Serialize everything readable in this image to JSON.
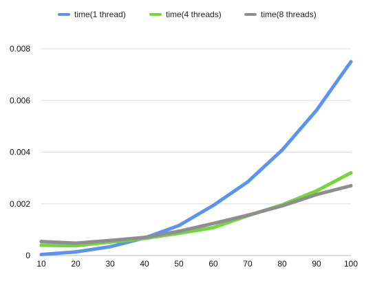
{
  "chart_data": {
    "type": "line",
    "title": "",
    "xlabel": "",
    "ylabel": "",
    "x": [
      10,
      20,
      30,
      40,
      50,
      60,
      70,
      80,
      90,
      100
    ],
    "ylim": [
      0,
      0.008
    ],
    "yticks": [
      0,
      0.002,
      0.004,
      0.006,
      0.008
    ],
    "ytick_labels": [
      "0",
      "0.002",
      "0.004",
      "0.006",
      "0.008"
    ],
    "xtick_labels": [
      "10",
      "20",
      "30",
      "40",
      "50",
      "60",
      "70",
      "80",
      "90",
      "100"
    ],
    "grid": "horizontal",
    "legend_position": "top",
    "series": [
      {
        "name": "time(1 thread)",
        "color": "#5b94f0",
        "values": [
          4e-05,
          0.00014,
          0.00034,
          0.00068,
          0.00116,
          0.00194,
          0.00285,
          0.00408,
          0.00562,
          0.0075
        ]
      },
      {
        "name": "time(4 threads)",
        "color": "#72d63c",
        "values": [
          0.0004,
          0.00038,
          0.00052,
          0.00066,
          0.00086,
          0.00108,
          0.00154,
          0.00196,
          0.0025,
          0.0032
        ]
      },
      {
        "name": "time(8 threads)",
        "color": "#8e8e8e",
        "values": [
          0.00054,
          0.00048,
          0.00058,
          0.0007,
          0.00094,
          0.00124,
          0.00156,
          0.00192,
          0.00236,
          0.0027
        ]
      }
    ]
  }
}
